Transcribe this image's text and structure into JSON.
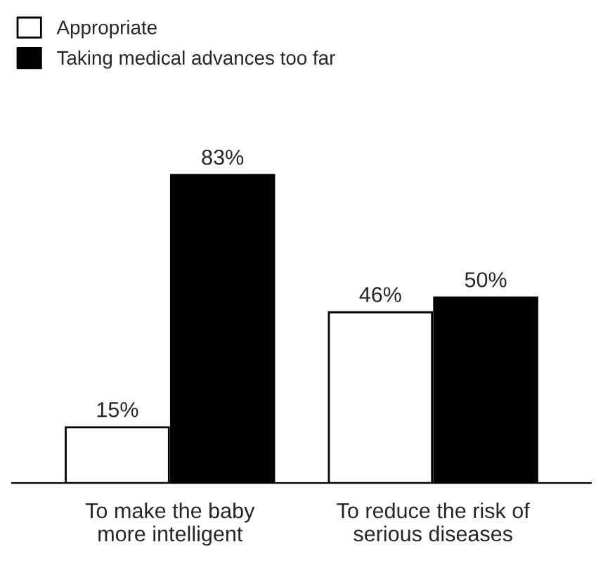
{
  "chart_data": {
    "type": "bar",
    "categories": [
      "To make the baby\nmore intelligent",
      "To reduce the risk of\nserious diseases"
    ],
    "series": [
      {
        "name": "Appropriate",
        "color": "#ffffff",
        "values": [
          15,
          46
        ],
        "value_labels": [
          "15%",
          "46%"
        ]
      },
      {
        "name": "Taking medical advances too far",
        "color": "#000000",
        "values": [
          83,
          50
        ],
        "value_labels": [
          "83%",
          "50%"
        ]
      }
    ],
    "legend": "top left",
    "grid": false
  }
}
